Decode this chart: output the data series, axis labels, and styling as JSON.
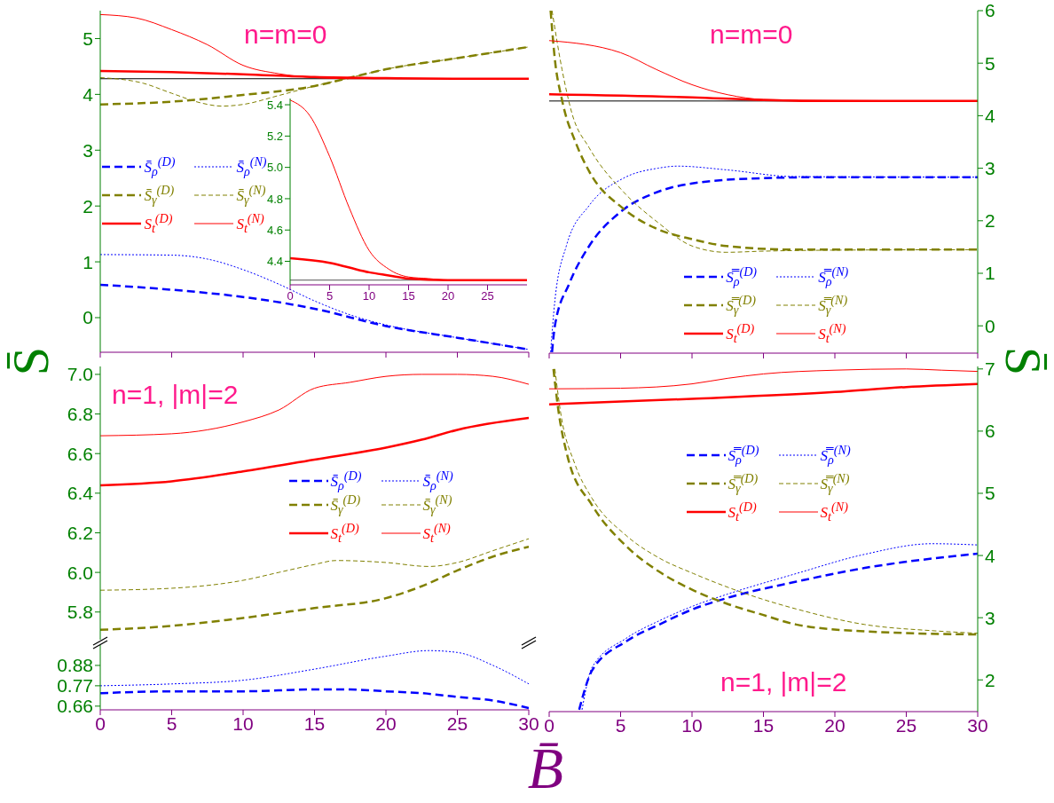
{
  "chart_data": [
    {
      "type": "line",
      "ylabel": "S̄",
      "annotations": [
        "n=m=0"
      ],
      "xlim": [
        0,
        30
      ],
      "xticks": [
        {
          "value": 0,
          "label": null
        },
        {
          "value": 5,
          "label": null
        },
        {
          "value": 10,
          "label": null
        },
        {
          "value": 15,
          "label": null
        },
        {
          "value": 20,
          "label": null
        },
        {
          "value": 25,
          "label": null
        },
        {
          "value": 30,
          "label": null
        }
      ],
      "ylim": [
        -0.62,
        5.5
      ],
      "yticks": [
        0,
        1,
        2,
        3,
        4,
        5
      ],
      "tick_labels": "y",
      "grid": false,
      "legend": "left",
      "ref_lines": [
        {
          "axis": "y",
          "value": 4.28,
          "color": "#000000"
        }
      ],
      "series": [
        {
          "name": "S̄$_{ρ}$$^{(D)}$",
          "color": "#0000ff",
          "line_style": "dashed",
          "x": [
            0,
            5,
            10,
            15,
            20,
            25,
            30
          ],
          "values": [
            0.59,
            0.5,
            0.37,
            0.16,
            -0.15,
            -0.36,
            -0.57
          ]
        },
        {
          "name": "S̄$_{ρ}$$^{(N)}$",
          "color": "#0000ff",
          "line_style": "dotted",
          "x": [
            0,
            5,
            7.5,
            10,
            12.5,
            15,
            17.5,
            20,
            25,
            30
          ],
          "values": [
            1.13,
            1.12,
            1.05,
            0.86,
            0.6,
            0.3,
            0.05,
            -0.13,
            -0.36,
            -0.57
          ]
        },
        {
          "name": "S̄$_{γ}$$^{(D)}$",
          "color": "#808000",
          "line_style": "dashed",
          "x": [
            0,
            5,
            10,
            15,
            17.5,
            20,
            25,
            30
          ],
          "values": [
            3.82,
            3.87,
            3.99,
            4.15,
            4.3,
            4.45,
            4.65,
            4.85
          ]
        },
        {
          "name": "S̄$_{γ}$$^{(N)}$",
          "color": "#808000",
          "line_style": "dashed",
          "x": [
            0,
            3,
            5,
            7,
            8.5,
            10,
            12.5,
            15,
            17.5,
            20,
            25,
            30
          ],
          "values": [
            4.3,
            4.2,
            4.02,
            3.85,
            3.79,
            3.82,
            3.98,
            4.15,
            4.3,
            4.45,
            4.65,
            4.85
          ]
        },
        {
          "name": "S$_{t}$$^{(D)}$",
          "color": "#ff0000",
          "line_style": "solid",
          "x": [
            0,
            5,
            10,
            15,
            20,
            25,
            30
          ],
          "values": [
            4.42,
            4.4,
            4.36,
            4.31,
            4.29,
            4.28,
            4.28
          ]
        },
        {
          "name": "S$_{t}$$^{(N)}$",
          "color": "#ff0000",
          "line_style": "solid",
          "x": [
            0,
            2.5,
            5,
            7.5,
            10,
            12.5,
            15,
            17.5,
            20,
            25,
            30
          ],
          "values": [
            5.43,
            5.37,
            5.16,
            4.89,
            4.52,
            4.37,
            4.3,
            4.28,
            4.28,
            4.28,
            4.28
          ]
        }
      ]
    },
    {
      "type": "line",
      "xlim": [
        0,
        30
      ],
      "xticks": [
        0,
        5,
        10,
        15,
        20,
        25
      ],
      "ylim": [
        4.25,
        5.44
      ],
      "yticks": [
        4.4,
        4.6,
        4.8,
        {
          "value": 5,
          "label": "5.0"
        },
        5.2,
        5.4
      ],
      "grid": false,
      "ref_lines": [
        {
          "axis": "y",
          "value": 4.28,
          "color": "#555555"
        }
      ],
      "series": [
        {
          "color": "#ff0000",
          "line_style": "solid",
          "x": [
            0,
            5,
            7.5,
            10,
            12.5,
            15,
            20,
            30
          ],
          "values": [
            4.42,
            4.39,
            4.36,
            4.33,
            4.31,
            4.29,
            4.28,
            4.28
          ]
        },
        {
          "color": "#ff0000",
          "line_style": "solid",
          "x": [
            0,
            2.5,
            5,
            7.5,
            10,
            12.5,
            15,
            17.5,
            20,
            30
          ],
          "values": [
            5.43,
            5.33,
            5.07,
            4.74,
            4.47,
            4.35,
            4.3,
            4.29,
            4.28,
            4.28
          ]
        }
      ]
    },
    {
      "type": "line",
      "ylabel": "S̄",
      "annotations": [
        "n=m=0"
      ],
      "xlim": [
        0,
        30
      ],
      "xticks": [
        {
          "value": 0,
          "label": null
        },
        {
          "value": 5,
          "label": null
        },
        {
          "value": 10,
          "label": null
        },
        {
          "value": 15,
          "label": null
        },
        {
          "value": 20,
          "label": null
        },
        {
          "value": 25,
          "label": null
        },
        {
          "value": 30,
          "label": null
        }
      ],
      "ylim": [
        -0.52,
        6
      ],
      "yticks": [
        0,
        1,
        2,
        3,
        4,
        5,
        6
      ],
      "tick_labels": "y",
      "grid": false,
      "legend": "bottom",
      "ref_lines": [
        {
          "axis": "y",
          "value": 4.28,
          "color": "#000000"
        }
      ],
      "series": [
        {
          "name": "S̿$_{ρ}$$^{(D)}$",
          "color": "#0000ff",
          "line_style": "dashed",
          "x": [
            0.2,
            0.4,
            1.4,
            2.8,
            5,
            7.6,
            10,
            14.8,
            19.6,
            30
          ],
          "values": [
            -0.5,
            0,
            0.8,
            1.52,
            2.17,
            2.55,
            2.71,
            2.81,
            2.83,
            2.83
          ]
        },
        {
          "name": "S̿$_{ρ}$$^{(N)}$",
          "color": "#0000ff",
          "line_style": "dotted",
          "x": [
            0.1,
            0.4,
            1.2,
            2.8,
            5.2,
            7.6,
            9,
            12.4,
            17.2,
            30
          ],
          "values": [
            -0.5,
            0.48,
            1.52,
            2.29,
            2.81,
            3,
            3.04,
            2.97,
            2.84,
            2.83
          ]
        },
        {
          "name": "S̿$_{γ}$$^{(D)}$",
          "color": "#808000",
          "line_style": "dashed",
          "x": [
            0.1,
            0.4,
            0.9,
            1.9,
            2.8,
            5.2,
            7.6,
            10,
            12.4,
            17.2,
            30
          ],
          "values": [
            6,
            5.07,
            4.3,
            3.46,
            2.94,
            2.23,
            1.84,
            1.65,
            1.52,
            1.45,
            1.45
          ]
        },
        {
          "name": "S̿$_{γ}$$^{(N)}$",
          "color": "#808000",
          "line_style": "dashed",
          "x": [
            0.2,
            0.9,
            1.6,
            2.8,
            5.2,
            7.6,
            10,
            12.4,
            14.8,
            19.6,
            30
          ],
          "values": [
            6,
            4.88,
            4.04,
            3.39,
            2.55,
            1.97,
            1.52,
            1.4,
            1.42,
            1.44,
            1.45
          ]
        },
        {
          "name": "S$_{t}$$^{(D)}$",
          "color": "#ff0000",
          "line_style": "solid",
          "x": [
            0,
            10,
            15,
            20,
            30
          ],
          "values": [
            4.41,
            4.35,
            4.3,
            4.28,
            4.28
          ]
        },
        {
          "name": "S$_{t}$$^{(N)}$",
          "color": "#ff0000",
          "line_style": "solid",
          "x": [
            0,
            5,
            7.5,
            10,
            12.5,
            15,
            20,
            30
          ],
          "values": [
            5.43,
            5.2,
            4.88,
            4.59,
            4.4,
            4.31,
            4.29,
            4.28
          ]
        }
      ]
    },
    {
      "type": "line",
      "annotations": [
        "n=1, |m|=2"
      ],
      "xlim": [
        0,
        30
      ],
      "ylim": [
        5.66,
        7.04
      ],
      "yticks": [
        5.8,
        {
          "value": 6,
          "label": "6.0"
        },
        6.2,
        6.4,
        6.6,
        6.8,
        {
          "value": 7,
          "label": "7.0"
        }
      ],
      "tick_labels": "y",
      "grid": false,
      "legend": "right",
      "series": [
        {
          "name": "S̄$_{γ}$$^{(D)}$",
          "color": "#808000",
          "line_style": "dashed",
          "x": [
            0,
            5,
            10,
            15,
            20,
            22.5,
            25,
            27.5,
            30
          ],
          "values": [
            5.71,
            5.73,
            5.77,
            5.82,
            5.87,
            5.93,
            6.01,
            6.08,
            6.13
          ]
        },
        {
          "name": "S̄$_{γ}$$^{(N)}$",
          "color": "#808000",
          "line_style": "dashed",
          "x": [
            0,
            5,
            10,
            12.5,
            15,
            16.5,
            20,
            23,
            25,
            27.5,
            30
          ],
          "values": [
            5.91,
            5.92,
            5.96,
            6,
            6.04,
            6.06,
            6.05,
            6.03,
            6.05,
            6.11,
            6.17
          ]
        },
        {
          "name": "S$_{t}$$^{(D)}$",
          "color": "#ff0000",
          "line_style": "solid",
          "x": [
            0,
            5,
            10,
            15,
            20,
            22.5,
            25,
            30
          ],
          "values": [
            6.44,
            6.46,
            6.51,
            6.57,
            6.63,
            6.67,
            6.72,
            6.78
          ]
        },
        {
          "name": "S$_{t}$$^{(N)}$",
          "color": "#ff0000",
          "line_style": "solid",
          "x": [
            0,
            5,
            10,
            12.5,
            15,
            17.5,
            20,
            22.5,
            25,
            27.5,
            30
          ],
          "values": [
            6.69,
            6.7,
            6.76,
            6.82,
            6.93,
            6.96,
            6.99,
            7,
            7,
            6.99,
            6.95
          ]
        }
      ]
    },
    {
      "type": "line",
      "xlabel": "B̄",
      "xlim": [
        0,
        30
      ],
      "xticks": [
        0,
        5,
        10,
        15,
        20,
        25,
        30
      ],
      "ylim": [
        0.64,
        0.99
      ],
      "yticks": [
        0.66,
        0.77,
        0.88
      ],
      "grid": false,
      "legend": "top right",
      "series": [
        {
          "name": "S̄$_{ρ}$$^{(D)}$",
          "color": "#0000ff",
          "line_style": "dashed",
          "x": [
            0,
            5,
            10,
            15,
            17.5,
            20,
            22.5,
            25,
            27.5,
            30
          ],
          "values": [
            0.73,
            0.74,
            0.74,
            0.75,
            0.75,
            0.74,
            0.73,
            0.71,
            0.69,
            0.65
          ]
        },
        {
          "name": "S̄$_{ρ}$$^{(N)}$",
          "color": "#0000ff",
          "line_style": "dotted",
          "x": [
            0,
            5,
            10,
            15,
            20,
            23,
            25,
            27.5,
            30
          ],
          "values": [
            0.77,
            0.78,
            0.8,
            0.86,
            0.93,
            0.96,
            0.95,
            0.88,
            0.78
          ]
        }
      ]
    },
    {
      "type": "line",
      "annotations": [
        "n=1, |m|=2"
      ],
      "xlim": [
        0,
        30
      ],
      "xticks": [
        0,
        5,
        10,
        15,
        20,
        25,
        30
      ],
      "ylim": [
        1.49,
        7.04
      ],
      "yticks": [
        2,
        3,
        4,
        5,
        6,
        7
      ],
      "grid": false,
      "legend": "top",
      "series": [
        {
          "name": "S̿$_{ρ}$$^{(D)}$",
          "color": "#0000ff",
          "line_style": "dashed",
          "x": [
            2.1,
            3,
            5.4,
            7.7,
            10.1,
            12.5,
            17.3,
            22.1,
            30
          ],
          "values": [
            1.52,
            2.15,
            2.62,
            2.89,
            3.14,
            3.32,
            3.58,
            3.8,
            4.03
          ]
        },
        {
          "name": "S̿$_{ρ}$$^{(N)}$",
          "color": "#0000ff",
          "line_style": "dotted",
          "x": [
            2.3,
            3,
            5.4,
            7.7,
            10.1,
            12.5,
            17.3,
            22.1,
            26.8,
            30
          ],
          "values": [
            1.52,
            2.2,
            2.67,
            2.95,
            3.19,
            3.38,
            3.71,
            4.02,
            4.19,
            4.17
          ]
        },
        {
          "name": "S̿$_{γ}$$^{(D)}$",
          "color": "#808000",
          "line_style": "dashed",
          "x": [
            0.3,
            0.6,
            1.3,
            3,
            5.4,
            7.7,
            10.1,
            12.5,
            14.9,
            17.3,
            22.1,
            30
          ],
          "values": [
            7,
            6.41,
            5.58,
            4.81,
            4.15,
            3.74,
            3.44,
            3.22,
            3.05,
            2.89,
            2.78,
            2.73
          ]
        },
        {
          "name": "S̿$_{γ}$$^{(N)}$",
          "color": "#808000",
          "line_style": "dashed",
          "x": [
            0.4,
            0.8,
            1.8,
            3,
            5.4,
            7.7,
            10.1,
            12.5,
            14.9,
            17.3,
            22.1,
            26.9,
            30
          ],
          "values": [
            7,
            6.3,
            5.47,
            4.92,
            4.32,
            3.96,
            3.71,
            3.49,
            3.3,
            3.14,
            2.89,
            2.79,
            2.75
          ]
        },
        {
          "name": "S$_{t}$$^{(D)}$",
          "color": "#ff0000",
          "line_style": "solid",
          "x": [
            0,
            10,
            20,
            25,
            30
          ],
          "values": [
            6.43,
            6.52,
            6.63,
            6.71,
            6.76
          ]
        },
        {
          "name": "S$_{t}$$^{(N)}$",
          "color": "#ff0000",
          "line_style": "solid",
          "x": [
            0,
            5,
            10,
            12.5,
            15,
            20,
            25,
            27.5,
            30
          ],
          "values": [
            6.68,
            6.69,
            6.76,
            6.85,
            6.92,
            6.98,
            7,
            6.98,
            6.96
          ]
        }
      ]
    }
  ]
}
